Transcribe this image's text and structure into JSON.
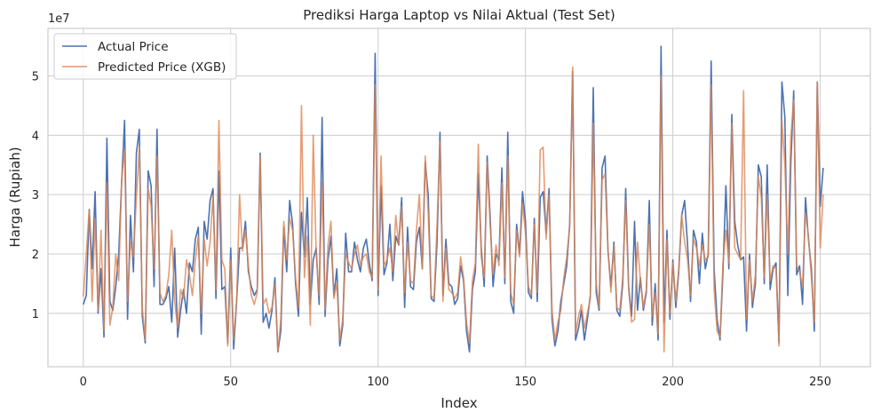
{
  "chart_data": {
    "type": "line",
    "title": "Prediksi Harga Laptop vs Nilai Aktual (Test Set)",
    "xlabel": "Index",
    "ylabel": "Harga (Rupiah)",
    "y_offset_label": "1e7",
    "xlim": [
      -12,
      267
    ],
    "ylim": [
      1000000,
      58000000
    ],
    "x_ticks": [
      0,
      50,
      100,
      150,
      200,
      250
    ],
    "x_tick_labels": [
      "0",
      "50",
      "100",
      "150",
      "200",
      "250"
    ],
    "y_ticks": [
      10000000,
      20000000,
      30000000,
      40000000,
      50000000
    ],
    "y_tick_labels": [
      "1",
      "2",
      "3",
      "4",
      "5"
    ],
    "grid": true,
    "legend_position": "top-left",
    "colors": {
      "actual": "#4c72b0",
      "predicted": "#dd8452",
      "grid": "#cccccc",
      "frame": "#cccccc"
    },
    "series": [
      {
        "name": "Actual Price",
        "values": [
          11.5,
          13.0,
          27.5,
          17.5,
          30.5,
          10.0,
          17.5,
          6.0,
          39.5,
          12.0,
          10.5,
          14.5,
          20.0,
          32.0,
          42.5,
          9.0,
          26.5,
          17.0,
          37.0,
          41.0,
          9.5,
          5.0,
          34.0,
          31.5,
          14.5,
          41.0,
          11.5,
          11.5,
          12.5,
          14.5,
          8.5,
          21.0,
          6.0,
          10.5,
          14.0,
          10.0,
          18.5,
          17.0,
          22.5,
          24.5,
          6.5,
          25.5,
          22.5,
          29.0,
          31.0,
          12.5,
          34.0,
          14.0,
          14.5,
          5.0,
          21.0,
          4.0,
          12.0,
          21.0,
          21.0,
          25.5,
          17.0,
          14.5,
          13.0,
          14.0,
          37.0,
          8.5,
          10.0,
          7.5,
          10.5,
          16.0,
          3.5,
          7.0,
          24.5,
          17.0,
          29.0,
          25.0,
          15.0,
          9.5,
          27.0,
          19.5,
          29.5,
          11.5,
          19.0,
          21.0,
          11.5,
          43.0,
          9.5,
          19.0,
          23.0,
          13.0,
          17.5,
          4.5,
          8.0,
          23.5,
          17.0,
          17.0,
          22.0,
          19.0,
          17.0,
          21.0,
          22.5,
          18.5,
          15.5,
          53.8,
          13.0,
          31.5,
          16.5,
          18.5,
          25.0,
          15.5,
          23.0,
          21.5,
          29.5,
          11.0,
          24.5,
          14.5,
          14.0,
          22.0,
          24.5,
          17.5,
          35.5,
          30.0,
          12.5,
          12.0,
          22.0,
          40.5,
          13.0,
          22.5,
          15.0,
          14.5,
          11.5,
          12.5,
          18.0,
          15.5,
          7.0,
          3.5,
          14.0,
          17.0,
          33.5,
          21.0,
          14.5,
          36.5,
          26.5,
          14.5,
          20.0,
          19.0,
          34.5,
          15.0,
          40.5,
          12.0,
          10.0,
          25.0,
          20.0,
          30.5,
          25.5,
          13.5,
          12.5,
          26.0,
          12.0,
          29.5,
          30.5,
          23.5,
          31.0,
          9.0,
          4.5,
          7.0,
          12.0,
          15.0,
          18.0,
          25.0,
          50.8,
          5.5,
          7.5,
          10.5,
          5.5,
          9.0,
          13.0,
          48.0,
          13.5,
          10.5,
          34.5,
          36.5,
          20.5,
          14.5,
          22.0,
          10.5,
          9.5,
          15.0,
          31.0,
          14.5,
          9.5,
          25.5,
          10.5,
          16.0,
          10.5,
          13.5,
          29.0,
          8.0,
          15.0,
          5.5,
          55.0,
          8.5,
          24.0,
          9.0,
          19.0,
          11.0,
          17.0,
          26.5,
          29.0,
          21.5,
          12.0,
          24.0,
          22.0,
          15.0,
          23.5,
          17.5,
          20.0,
          52.5,
          17.5,
          9.0,
          5.5,
          17.0,
          31.5,
          17.5,
          43.5,
          25.5,
          21.5,
          19.0,
          19.5,
          7.0,
          20.0,
          11.0,
          15.0,
          35.0,
          33.0,
          15.0,
          35.0,
          14.0,
          17.5,
          18.5,
          5.0,
          49.0,
          43.0,
          13.0,
          35.0,
          47.5,
          16.5,
          18.0,
          11.5,
          29.5,
          22.5,
          17.5,
          7.0,
          49.0,
          28.0,
          34.5
        ]
      },
      {
        "name": "Predicted Price (XGB)",
        "values": [
          12.8,
          20.0,
          27.5,
          12.0,
          26.0,
          10.5,
          24.0,
          7.0,
          32.0,
          8.0,
          11.0,
          20.0,
          15.5,
          32.5,
          37.5,
          12.0,
          22.0,
          19.5,
          29.5,
          38.0,
          11.0,
          5.5,
          31.0,
          28.0,
          17.5,
          36.5,
          13.5,
          12.0,
          13.0,
          16.5,
          24.0,
          12.0,
          7.5,
          14.0,
          12.5,
          19.0,
          16.5,
          13.0,
          19.0,
          23.0,
          10.0,
          22.5,
          18.0,
          22.0,
          30.0,
          14.0,
          42.5,
          19.0,
          17.5,
          4.5,
          19.0,
          5.5,
          12.0,
          30.0,
          20.5,
          24.0,
          18.0,
          13.0,
          11.5,
          13.5,
          36.5,
          11.5,
          12.5,
          10.0,
          11.0,
          15.0,
          3.5,
          9.0,
          25.5,
          19.0,
          26.0,
          24.0,
          16.0,
          11.0,
          45.0,
          16.0,
          23.0,
          8.0,
          40.0,
          20.0,
          13.0,
          32.0,
          10.5,
          21.5,
          25.5,
          12.5,
          15.0,
          5.5,
          9.0,
          20.0,
          18.5,
          17.5,
          20.0,
          21.5,
          18.0,
          19.5,
          20.0,
          17.0,
          16.0,
          48.5,
          14.0,
          36.5,
          18.0,
          19.0,
          21.0,
          17.0,
          26.5,
          21.5,
          28.0,
          13.5,
          22.0,
          15.5,
          15.0,
          24.0,
          30.0,
          17.5,
          36.5,
          27.0,
          13.0,
          12.5,
          25.0,
          39.0,
          12.0,
          21.0,
          14.0,
          13.5,
          12.5,
          13.5,
          19.5,
          16.0,
          8.5,
          5.0,
          15.5,
          18.5,
          38.5,
          19.5,
          16.0,
          35.5,
          25.0,
          16.5,
          21.5,
          18.0,
          32.0,
          16.0,
          36.5,
          13.5,
          11.5,
          24.0,
          19.5,
          28.5,
          23.5,
          14.5,
          13.0,
          25.0,
          13.5,
          37.5,
          38.0,
          22.5,
          30.0,
          10.5,
          5.5,
          8.5,
          10.5,
          16.0,
          19.5,
          24.5,
          51.5,
          6.5,
          9.5,
          11.5,
          7.5,
          10.0,
          12.5,
          42.0,
          15.0,
          11.0,
          32.5,
          33.5,
          20.5,
          13.5,
          21.5,
          11.0,
          10.5,
          16.0,
          29.0,
          14.0,
          8.5,
          9.0,
          22.0,
          15.5,
          11.0,
          14.0,
          25.0,
          9.5,
          13.5,
          6.5,
          50.0,
          3.5,
          22.5,
          10.0,
          18.5,
          12.0,
          17.5,
          26.5,
          22.0,
          19.0,
          13.0,
          22.5,
          21.0,
          18.0,
          21.5,
          19.0,
          19.5,
          48.5,
          14.0,
          7.0,
          6.0,
          18.5,
          24.0,
          18.5,
          42.0,
          21.0,
          20.0,
          19.0,
          47.5,
          9.0,
          19.0,
          12.0,
          16.5,
          33.0,
          29.5,
          16.0,
          30.0,
          15.5,
          18.0,
          17.5,
          4.5,
          42.5,
          35.0,
          20.0,
          39.5,
          46.0,
          18.0,
          17.0,
          14.5,
          27.0,
          23.0,
          16.0,
          8.5,
          49.0,
          21.0,
          30.0
        ]
      }
    ]
  }
}
